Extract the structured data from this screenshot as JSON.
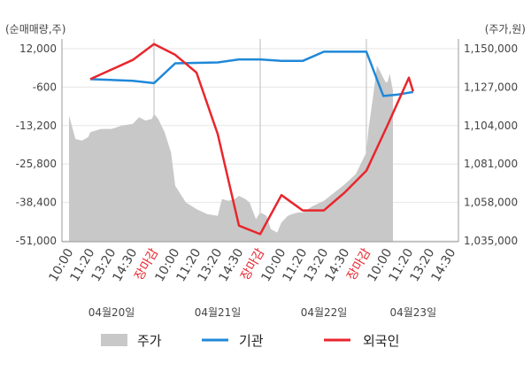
{
  "chart_data": {
    "type": "line",
    "left_axis": {
      "unit_label": "(순매매량,주)",
      "ticks": [
        "12,000",
        "-600",
        "-13,200",
        "-25,800",
        "-38,400",
        "-51,000"
      ],
      "ylim": [
        -51000,
        12000
      ]
    },
    "right_axis": {
      "unit_label": "(주가,원)",
      "ticks": [
        "1,150,000",
        "1,127,000",
        "1,104,000",
        "1,081,000",
        "1,058,000",
        "1,035,000"
      ],
      "ylim": [
        1035000,
        1150000
      ]
    },
    "x_ticks": [
      "10:00",
      "11:20",
      "13:20",
      "14:30",
      "장마감",
      "10:00",
      "11:20",
      "13:20",
      "14:30",
      "장마감",
      "10:00",
      "11:20",
      "13:20",
      "14:30",
      "장마감",
      "10:00",
      "11:20",
      "13:20",
      "14:30"
    ],
    "x_range": [
      0,
      18
    ],
    "close_label": "장마감",
    "day_boundaries": [
      4,
      9,
      14
    ],
    "dates": [
      {
        "label": "04월20일",
        "center": 2
      },
      {
        "label": "04월21일",
        "center": 7
      },
      {
        "label": "04월22일",
        "center": 12
      },
      {
        "label": "04월23일",
        "center": 16.2
      }
    ],
    "grid": true,
    "legend_position": "bottom",
    "series": [
      {
        "name": "주가",
        "kind": "area",
        "axis": "right",
        "color": "#c8c8c8",
        "points": [
          [
            0,
            1110000
          ],
          [
            0.3,
            1096000
          ],
          [
            0.6,
            1095000
          ],
          [
            0.9,
            1097000
          ],
          [
            1.0,
            1100000
          ],
          [
            1.5,
            1102000
          ],
          [
            2.0,
            1102000
          ],
          [
            2.5,
            1104000
          ],
          [
            3.0,
            1105000
          ],
          [
            3.3,
            1109000
          ],
          [
            3.6,
            1107000
          ],
          [
            3.9,
            1108000
          ],
          [
            4.0,
            1111000
          ],
          [
            4.2,
            1108000
          ],
          [
            4.5,
            1100000
          ],
          [
            4.8,
            1088000
          ],
          [
            5.0,
            1068000
          ],
          [
            5.5,
            1058000
          ],
          [
            6.0,
            1054000
          ],
          [
            6.5,
            1051000
          ],
          [
            7.0,
            1050000
          ],
          [
            7.2,
            1060000
          ],
          [
            7.5,
            1059000
          ],
          [
            7.8,
            1060000
          ],
          [
            8.0,
            1062000
          ],
          [
            8.3,
            1060000
          ],
          [
            8.5,
            1058000
          ],
          [
            8.8,
            1048000
          ],
          [
            9.0,
            1052000
          ],
          [
            9.3,
            1050000
          ],
          [
            9.5,
            1042000
          ],
          [
            9.8,
            1040000
          ],
          [
            10.0,
            1046000
          ],
          [
            10.3,
            1050000
          ],
          [
            10.5,
            1051000
          ],
          [
            10.8,
            1052000
          ],
          [
            11.0,
            1052000
          ],
          [
            11.5,
            1056000
          ],
          [
            12.0,
            1059000
          ],
          [
            12.5,
            1064000
          ],
          [
            13.0,
            1069000
          ],
          [
            13.5,
            1075000
          ],
          [
            14.0,
            1088000
          ],
          [
            14.1,
            1102000
          ],
          [
            14.3,
            1120000
          ],
          [
            14.5,
            1140000
          ],
          [
            14.7,
            1135000
          ],
          [
            14.9,
            1130000
          ],
          [
            15.0,
            1130000
          ],
          [
            15.1,
            1135000
          ],
          [
            15.2,
            1128000
          ],
          [
            15.25,
            1125000
          ]
        ]
      },
      {
        "name": "기관",
        "kind": "line",
        "axis": "left",
        "color": "#1f88d8",
        "points": [
          [
            1,
            2000
          ],
          [
            3,
            1500
          ],
          [
            4,
            700
          ],
          [
            5,
            7200
          ],
          [
            7,
            7500
          ],
          [
            8,
            8500
          ],
          [
            9,
            8500
          ],
          [
            10,
            8000
          ],
          [
            11,
            8000
          ],
          [
            12,
            11000
          ],
          [
            13,
            11000
          ],
          [
            14,
            11000
          ],
          [
            14.8,
            -3500
          ],
          [
            15.5,
            -3000
          ],
          [
            16.2,
            -2200
          ]
        ]
      },
      {
        "name": "외국인",
        "kind": "line",
        "axis": "left",
        "color": "#e8262d",
        "points": [
          [
            1,
            2000
          ],
          [
            3,
            8300
          ],
          [
            4,
            13500
          ],
          [
            5,
            10000
          ],
          [
            6,
            4200
          ],
          [
            7,
            -16000
          ],
          [
            8,
            -46000
          ],
          [
            9,
            -48800
          ],
          [
            10,
            -36000
          ],
          [
            11,
            -41000
          ],
          [
            12,
            -41000
          ],
          [
            13,
            -35000
          ],
          [
            14,
            -28000
          ],
          [
            15,
            -13000
          ],
          [
            16,
            2500
          ],
          [
            16.2,
            -2000
          ]
        ]
      }
    ]
  }
}
